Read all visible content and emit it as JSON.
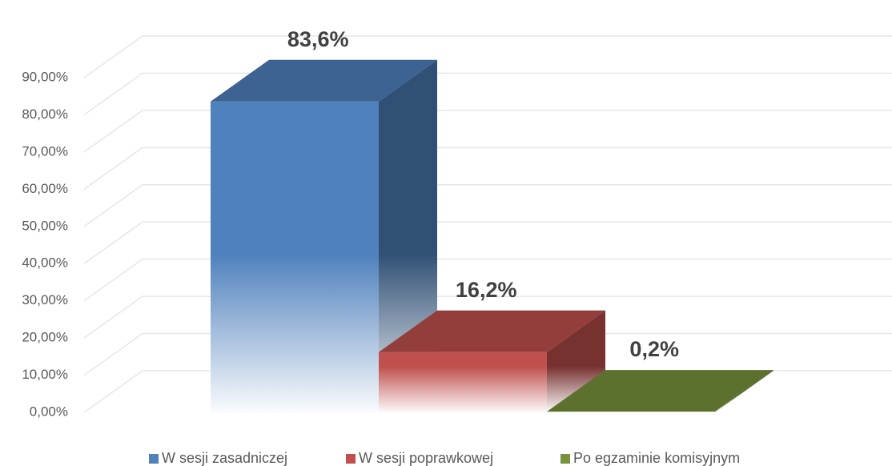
{
  "chart_data": {
    "type": "bar3d",
    "series": [
      {
        "name": "W sesji zasadniczej",
        "color": "#4f81bd",
        "values": [
          83.6
        ],
        "value_labels": [
          "83,6%"
        ]
      },
      {
        "name": "W sesji poprawkowej",
        "color": "#c0504d",
        "values": [
          16.2
        ],
        "value_labels": [
          "16,2%"
        ]
      },
      {
        "name": "Po egzaminie komisyjnym",
        "color": "#77933c",
        "values": [
          0.2
        ],
        "value_labels": [
          "0,2%"
        ]
      }
    ],
    "ylim": [
      0,
      90
    ],
    "yticks": [
      {
        "value": 0,
        "label": "0,00%"
      },
      {
        "value": 10,
        "label": "10,00%"
      },
      {
        "value": 20,
        "label": "20,00%"
      },
      {
        "value": 30,
        "label": "30,00%"
      },
      {
        "value": 40,
        "label": "40,00%"
      },
      {
        "value": 50,
        "label": "50,00%"
      },
      {
        "value": 60,
        "label": "60,00%"
      },
      {
        "value": 70,
        "label": "70,00%"
      },
      {
        "value": 80,
        "label": "80,00%"
      },
      {
        "value": 90,
        "label": "90,00%"
      }
    ],
    "grid": true,
    "legend": "bottom"
  }
}
